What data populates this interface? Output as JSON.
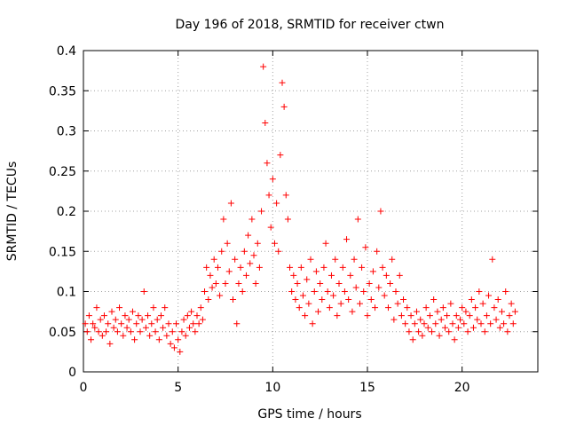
{
  "chart_data": {
    "type": "scatter",
    "title": "Day 196 of 2018, SRMTID for receiver ctwn",
    "xlabel": "GPS time / hours",
    "ylabel": "SRMTID / TECUs",
    "xlim": [
      0,
      24
    ],
    "ylim": [
      0,
      0.4
    ],
    "xticks": [
      0,
      5,
      10,
      15,
      20
    ],
    "yticks": [
      0,
      0.05,
      0.1,
      0.15,
      0.2,
      0.25,
      0.3,
      0.35,
      0.4
    ],
    "xtick_labels": [
      "0",
      "5",
      "10",
      "15",
      "20"
    ],
    "ytick_labels": [
      "0",
      "0.05",
      "0.1",
      "0.15",
      "0.2",
      "0.25",
      "0.3",
      "0.35",
      "0.4"
    ],
    "grid": true,
    "marker": "+",
    "color": "#ff0000",
    "series": [
      {
        "name": "SRMTID",
        "points": [
          [
            0.1,
            0.06
          ],
          [
            0.2,
            0.05
          ],
          [
            0.3,
            0.07
          ],
          [
            0.4,
            0.04
          ],
          [
            0.5,
            0.06
          ],
          [
            0.6,
            0.055
          ],
          [
            0.7,
            0.08
          ],
          [
            0.8,
            0.05
          ],
          [
            0.9,
            0.065
          ],
          [
            1.0,
            0.045
          ],
          [
            1.1,
            0.07
          ],
          [
            1.2,
            0.05
          ],
          [
            1.3,
            0.06
          ],
          [
            1.4,
            0.035
          ],
          [
            1.5,
            0.075
          ],
          [
            1.6,
            0.055
          ],
          [
            1.7,
            0.065
          ],
          [
            1.8,
            0.05
          ],
          [
            1.9,
            0.08
          ],
          [
            2.0,
            0.06
          ],
          [
            2.1,
            0.045
          ],
          [
            2.2,
            0.07
          ],
          [
            2.3,
            0.055
          ],
          [
            2.4,
            0.065
          ],
          [
            2.5,
            0.05
          ],
          [
            2.6,
            0.075
          ],
          [
            2.7,
            0.04
          ],
          [
            2.8,
            0.06
          ],
          [
            2.9,
            0.07
          ],
          [
            3.0,
            0.05
          ],
          [
            3.1,
            0.065
          ],
          [
            3.2,
            0.1
          ],
          [
            3.3,
            0.055
          ],
          [
            3.4,
            0.07
          ],
          [
            3.5,
            0.045
          ],
          [
            3.6,
            0.06
          ],
          [
            3.7,
            0.08
          ],
          [
            3.8,
            0.05
          ],
          [
            3.9,
            0.065
          ],
          [
            4.0,
            0.04
          ],
          [
            4.1,
            0.07
          ],
          [
            4.2,
            0.055
          ],
          [
            4.3,
            0.08
          ],
          [
            4.4,
            0.045
          ],
          [
            4.5,
            0.06
          ],
          [
            4.6,
            0.035
          ],
          [
            4.7,
            0.05
          ],
          [
            4.8,
            0.03
          ],
          [
            4.9,
            0.06
          ],
          [
            5.0,
            0.04
          ],
          [
            5.1,
            0.025
          ],
          [
            5.2,
            0.05
          ],
          [
            5.3,
            0.065
          ],
          [
            5.4,
            0.045
          ],
          [
            5.5,
            0.07
          ],
          [
            5.6,
            0.055
          ],
          [
            5.7,
            0.075
          ],
          [
            5.8,
            0.06
          ],
          [
            5.9,
            0.05
          ],
          [
            6.0,
            0.07
          ],
          [
            6.1,
            0.06
          ],
          [
            6.2,
            0.08
          ],
          [
            6.3,
            0.065
          ],
          [
            6.4,
            0.1
          ],
          [
            6.5,
            0.13
          ],
          [
            6.6,
            0.09
          ],
          [
            6.7,
            0.12
          ],
          [
            6.8,
            0.105
          ],
          [
            6.9,
            0.14
          ],
          [
            7.0,
            0.11
          ],
          [
            7.1,
            0.13
          ],
          [
            7.2,
            0.095
          ],
          [
            7.3,
            0.15
          ],
          [
            7.4,
            0.19
          ],
          [
            7.5,
            0.11
          ],
          [
            7.6,
            0.16
          ],
          [
            7.7,
            0.125
          ],
          [
            7.8,
            0.21
          ],
          [
            7.9,
            0.09
          ],
          [
            8.0,
            0.14
          ],
          [
            8.1,
            0.06
          ],
          [
            8.2,
            0.11
          ],
          [
            8.3,
            0.13
          ],
          [
            8.4,
            0.1
          ],
          [
            8.5,
            0.15
          ],
          [
            8.6,
            0.12
          ],
          [
            8.7,
            0.17
          ],
          [
            8.8,
            0.135
          ],
          [
            8.9,
            0.19
          ],
          [
            9.0,
            0.145
          ],
          [
            9.1,
            0.11
          ],
          [
            9.2,
            0.16
          ],
          [
            9.3,
            0.13
          ],
          [
            9.4,
            0.2
          ],
          [
            9.5,
            0.38
          ],
          [
            9.6,
            0.31
          ],
          [
            9.7,
            0.26
          ],
          [
            9.8,
            0.22
          ],
          [
            9.9,
            0.18
          ],
          [
            10.0,
            0.24
          ],
          [
            10.1,
            0.16
          ],
          [
            10.2,
            0.21
          ],
          [
            10.3,
            0.15
          ],
          [
            10.4,
            0.27
          ],
          [
            10.5,
            0.36
          ],
          [
            10.6,
            0.33
          ],
          [
            10.7,
            0.22
          ],
          [
            10.8,
            0.19
          ],
          [
            10.9,
            0.13
          ],
          [
            11.0,
            0.1
          ],
          [
            11.1,
            0.12
          ],
          [
            11.2,
            0.09
          ],
          [
            11.3,
            0.11
          ],
          [
            11.4,
            0.08
          ],
          [
            11.5,
            0.13
          ],
          [
            11.6,
            0.095
          ],
          [
            11.7,
            0.07
          ],
          [
            11.8,
            0.115
          ],
          [
            11.9,
            0.085
          ],
          [
            12.0,
            0.14
          ],
          [
            12.1,
            0.06
          ],
          [
            12.2,
            0.1
          ],
          [
            12.3,
            0.125
          ],
          [
            12.4,
            0.075
          ],
          [
            12.5,
            0.11
          ],
          [
            12.6,
            0.09
          ],
          [
            12.7,
            0.13
          ],
          [
            12.8,
            0.16
          ],
          [
            12.9,
            0.1
          ],
          [
            13.0,
            0.08
          ],
          [
            13.1,
            0.12
          ],
          [
            13.2,
            0.095
          ],
          [
            13.3,
            0.14
          ],
          [
            13.4,
            0.07
          ],
          [
            13.5,
            0.11
          ],
          [
            13.6,
            0.085
          ],
          [
            13.7,
            0.13
          ],
          [
            13.8,
            0.1
          ],
          [
            13.9,
            0.165
          ],
          [
            14.0,
            0.09
          ],
          [
            14.1,
            0.12
          ],
          [
            14.2,
            0.075
          ],
          [
            14.3,
            0.14
          ],
          [
            14.4,
            0.105
          ],
          [
            14.5,
            0.19
          ],
          [
            14.6,
            0.085
          ],
          [
            14.7,
            0.13
          ],
          [
            14.8,
            0.1
          ],
          [
            14.9,
            0.155
          ],
          [
            15.0,
            0.07
          ],
          [
            15.1,
            0.11
          ],
          [
            15.2,
            0.09
          ],
          [
            15.3,
            0.125
          ],
          [
            15.4,
            0.08
          ],
          [
            15.5,
            0.15
          ],
          [
            15.6,
            0.105
          ],
          [
            15.7,
            0.2
          ],
          [
            15.8,
            0.13
          ],
          [
            15.9,
            0.095
          ],
          [
            16.0,
            0.12
          ],
          [
            16.1,
            0.08
          ],
          [
            16.2,
            0.11
          ],
          [
            16.3,
            0.14
          ],
          [
            16.4,
            0.065
          ],
          [
            16.5,
            0.1
          ],
          [
            16.6,
            0.085
          ],
          [
            16.7,
            0.12
          ],
          [
            16.8,
            0.07
          ],
          [
            16.9,
            0.09
          ],
          [
            17.0,
            0.06
          ],
          [
            17.1,
            0.08
          ],
          [
            17.2,
            0.05
          ],
          [
            17.3,
            0.07
          ],
          [
            17.4,
            0.04
          ],
          [
            17.5,
            0.06
          ],
          [
            17.6,
            0.075
          ],
          [
            17.7,
            0.05
          ],
          [
            17.8,
            0.065
          ],
          [
            17.9,
            0.045
          ],
          [
            18.0,
            0.06
          ],
          [
            18.1,
            0.08
          ],
          [
            18.2,
            0.055
          ],
          [
            18.3,
            0.07
          ],
          [
            18.4,
            0.05
          ],
          [
            18.5,
            0.09
          ],
          [
            18.6,
            0.06
          ],
          [
            18.7,
            0.075
          ],
          [
            18.8,
            0.045
          ],
          [
            18.9,
            0.065
          ],
          [
            19.0,
            0.08
          ],
          [
            19.1,
            0.055
          ],
          [
            19.2,
            0.07
          ],
          [
            19.3,
            0.05
          ],
          [
            19.4,
            0.085
          ],
          [
            19.5,
            0.06
          ],
          [
            19.6,
            0.04
          ],
          [
            19.7,
            0.07
          ],
          [
            19.8,
            0.055
          ],
          [
            19.9,
            0.065
          ],
          [
            20.0,
            0.08
          ],
          [
            20.1,
            0.06
          ],
          [
            20.2,
            0.075
          ],
          [
            20.3,
            0.05
          ],
          [
            20.4,
            0.07
          ],
          [
            20.5,
            0.09
          ],
          [
            20.6,
            0.055
          ],
          [
            20.7,
            0.08
          ],
          [
            20.8,
            0.065
          ],
          [
            20.9,
            0.1
          ],
          [
            21.0,
            0.06
          ],
          [
            21.1,
            0.085
          ],
          [
            21.2,
            0.05
          ],
          [
            21.3,
            0.07
          ],
          [
            21.4,
            0.095
          ],
          [
            21.5,
            0.06
          ],
          [
            21.6,
            0.14
          ],
          [
            21.7,
            0.08
          ],
          [
            21.8,
            0.065
          ],
          [
            21.9,
            0.09
          ],
          [
            22.0,
            0.055
          ],
          [
            22.1,
            0.075
          ],
          [
            22.2,
            0.06
          ],
          [
            22.3,
            0.1
          ],
          [
            22.4,
            0.05
          ],
          [
            22.5,
            0.07
          ],
          [
            22.6,
            0.085
          ],
          [
            22.7,
            0.06
          ],
          [
            22.8,
            0.075
          ]
        ]
      }
    ]
  }
}
